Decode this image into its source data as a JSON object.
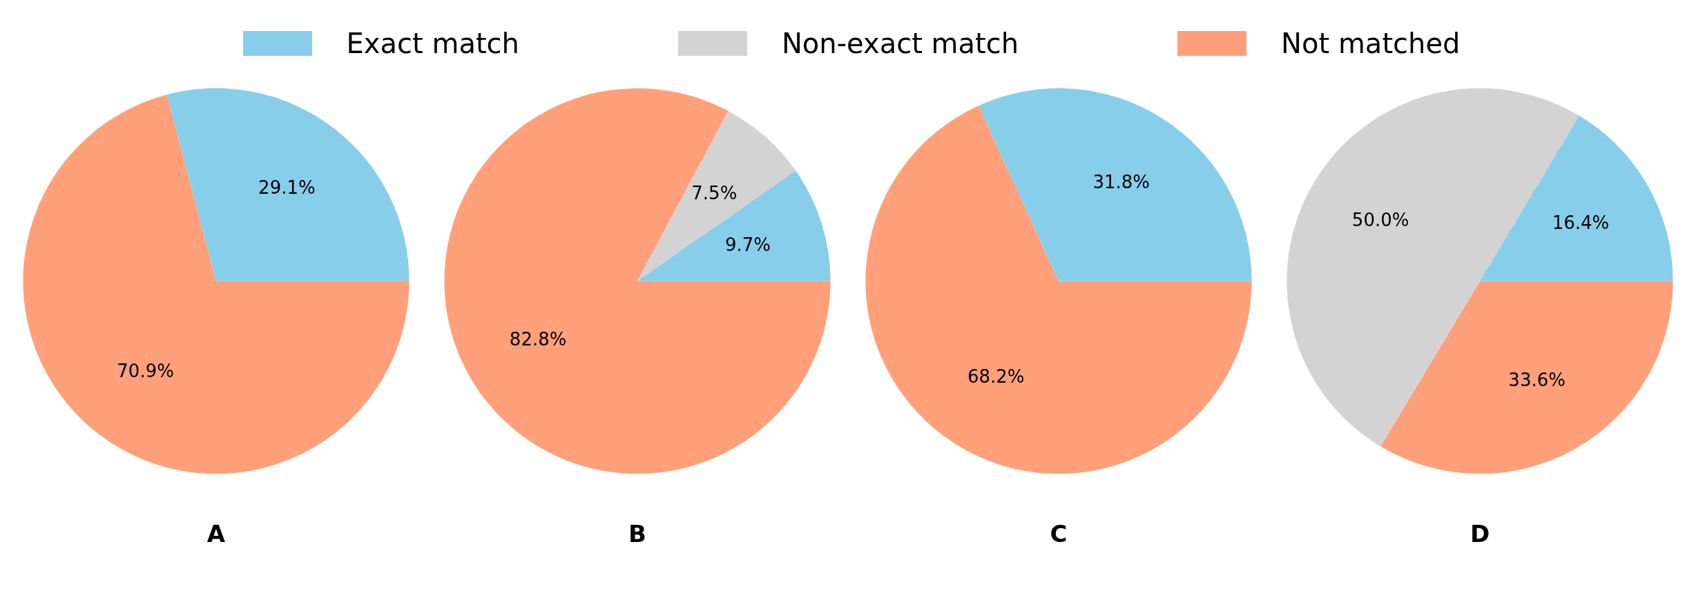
{
  "chart_data": [
    {
      "type": "pie",
      "title": "A",
      "categories": [
        null,
        null
      ],
      "values": [
        29.1,
        70.9
      ],
      "colors": [
        "#87ceeb",
        "#ffa07a"
      ],
      "value_labels": [
        "29.1%",
        "70.9%"
      ]
    },
    {
      "type": "pie",
      "title": "B",
      "categories": [
        "Exact match",
        "Non-exact match",
        "Not matched"
      ],
      "values": [
        9.7,
        7.5,
        82.8
      ],
      "colors": [
        "#87ceeb",
        "#d3d3d3",
        "#ffa07a"
      ],
      "value_labels": [
        "9.7%",
        "7.5%",
        "82.8%"
      ],
      "legend": "top"
    },
    {
      "type": "pie",
      "title": "C",
      "categories": [
        null,
        null
      ],
      "values": [
        31.8,
        68.2
      ],
      "colors": [
        "#87ceeb",
        "#ffa07a"
      ],
      "value_labels": [
        "31.8%",
        "68.2%"
      ]
    },
    {
      "type": "pie",
      "title": "D",
      "categories": [
        null,
        null,
        null
      ],
      "values": [
        16.4,
        50.0,
        33.6
      ],
      "colors": [
        "#87ceeb",
        "#d3d3d3",
        "#ffa07a"
      ],
      "value_labels": [
        "16.4%",
        "50.0%",
        "33.6%"
      ]
    }
  ]
}
